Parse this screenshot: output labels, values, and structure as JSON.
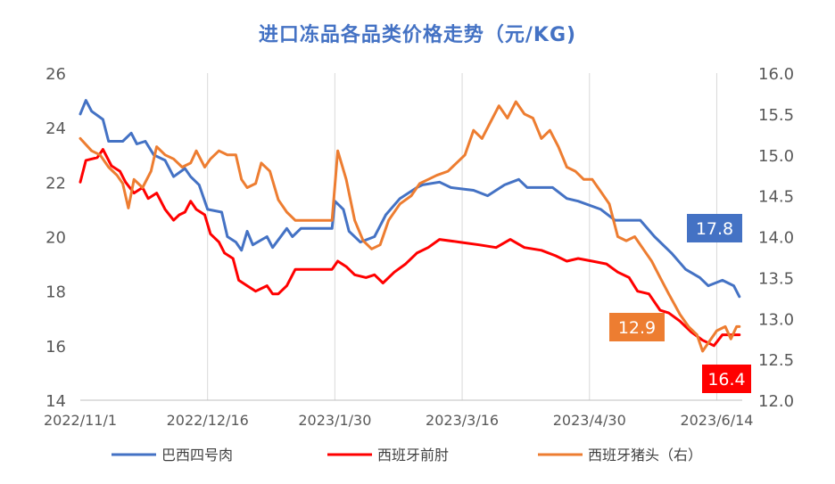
{
  "chart_data": {
    "type": "line",
    "title": "进口冻品各品类价格走势（元/KG)",
    "x_tick_labels": [
      "2022/11/1",
      "2022/12/16",
      "2023/1/30",
      "2023/3/16",
      "2023/4/30",
      "2023/6/14"
    ],
    "x_ticks": [
      "2022-11-01",
      "2022-12-16",
      "2023-01-30",
      "2023-03-16",
      "2023-04-30",
      "2023-06-14"
    ],
    "x_range": [
      "2022-11-01",
      "2023-06-23"
    ],
    "y_left": {
      "min": 14,
      "max": 26,
      "ticks": [
        "14",
        "16",
        "18",
        "20",
        "22",
        "24",
        "26"
      ]
    },
    "y_right": {
      "min": 12.0,
      "max": 16.0,
      "ticks": [
        "12.0",
        "12.5",
        "13.0",
        "13.5",
        "14.0",
        "14.5",
        "15.0",
        "15.5",
        "16.0"
      ]
    },
    "grid": "vertical",
    "legend_position": "bottom",
    "colors": {
      "brazil": "#4472c4",
      "spain_shoulder": "#ff0000",
      "spain_head": "#ed7d31"
    },
    "series": [
      {
        "name": "巴西四号肉",
        "axis": "left",
        "color": "#4472c4",
        "points": [
          [
            "2022-11-01",
            24.5
          ],
          [
            "2022-11-03",
            25.0
          ],
          [
            "2022-11-05",
            24.6
          ],
          [
            "2022-11-09",
            24.3
          ],
          [
            "2022-11-11",
            23.5
          ],
          [
            "2022-11-16",
            23.5
          ],
          [
            "2022-11-19",
            23.8
          ],
          [
            "2022-11-21",
            23.4
          ],
          [
            "2022-11-24",
            23.5
          ],
          [
            "2022-11-27",
            23.0
          ],
          [
            "2022-12-01",
            22.8
          ],
          [
            "2022-12-04",
            22.2
          ],
          [
            "2022-12-08",
            22.5
          ],
          [
            "2022-12-10",
            22.2
          ],
          [
            "2022-12-13",
            21.9
          ],
          [
            "2022-12-16",
            21.0
          ],
          [
            "2022-12-21",
            20.9
          ],
          [
            "2022-12-23",
            20.0
          ],
          [
            "2022-12-26",
            19.8
          ],
          [
            "2022-12-28",
            19.5
          ],
          [
            "2022-12-30",
            20.2
          ],
          [
            "2023-01-01",
            19.7
          ],
          [
            "2023-01-06",
            20.0
          ],
          [
            "2023-01-08",
            19.6
          ],
          [
            "2023-01-13",
            20.3
          ],
          [
            "2023-01-15",
            20.0
          ],
          [
            "2023-01-18",
            20.3
          ],
          [
            "2023-01-29",
            20.3
          ],
          [
            "2023-01-30",
            21.3
          ],
          [
            "2023-02-02",
            21.0
          ],
          [
            "2023-02-04",
            20.2
          ],
          [
            "2023-02-08",
            19.8
          ],
          [
            "2023-02-13",
            20.0
          ],
          [
            "2023-02-17",
            20.8
          ],
          [
            "2023-02-22",
            21.4
          ],
          [
            "2023-02-28",
            21.8
          ],
          [
            "2023-03-02",
            21.9
          ],
          [
            "2023-03-08",
            22.0
          ],
          [
            "2023-03-12",
            21.8
          ],
          [
            "2023-03-20",
            21.7
          ],
          [
            "2023-03-25",
            21.5
          ],
          [
            "2023-03-31",
            21.9
          ],
          [
            "2023-04-05",
            22.1
          ],
          [
            "2023-04-08",
            21.8
          ],
          [
            "2023-04-17",
            21.8
          ],
          [
            "2023-04-22",
            21.4
          ],
          [
            "2023-04-26",
            21.3
          ],
          [
            "2023-05-04",
            21.0
          ],
          [
            "2023-05-09",
            20.6
          ],
          [
            "2023-05-18",
            20.6
          ],
          [
            "2023-05-23",
            20.0
          ],
          [
            "2023-05-29",
            19.4
          ],
          [
            "2023-06-03",
            18.8
          ],
          [
            "2023-06-08",
            18.5
          ],
          [
            "2023-06-11",
            18.2
          ],
          [
            "2023-06-16",
            18.4
          ],
          [
            "2023-06-20",
            18.2
          ],
          [
            "2023-06-22",
            17.8
          ]
        ]
      },
      {
        "name": "西班牙前肘",
        "axis": "left",
        "color": "#ff0000",
        "points": [
          [
            "2022-11-01",
            22.0
          ],
          [
            "2022-11-03",
            22.8
          ],
          [
            "2022-11-07",
            22.9
          ],
          [
            "2022-11-09",
            23.2
          ],
          [
            "2022-11-12",
            22.6
          ],
          [
            "2022-11-15",
            22.4
          ],
          [
            "2022-11-17",
            22.0
          ],
          [
            "2022-11-20",
            21.6
          ],
          [
            "2022-11-23",
            21.8
          ],
          [
            "2022-11-25",
            21.4
          ],
          [
            "2022-11-28",
            21.6
          ],
          [
            "2022-12-01",
            21.0
          ],
          [
            "2022-12-04",
            20.6
          ],
          [
            "2022-12-06",
            20.8
          ],
          [
            "2022-12-08",
            20.9
          ],
          [
            "2022-12-10",
            21.3
          ],
          [
            "2022-12-12",
            21.0
          ],
          [
            "2022-12-15",
            20.8
          ],
          [
            "2022-12-17",
            20.1
          ],
          [
            "2022-12-20",
            19.8
          ],
          [
            "2022-12-22",
            19.4
          ],
          [
            "2022-12-25",
            19.2
          ],
          [
            "2022-12-27",
            18.4
          ],
          [
            "2022-12-30",
            18.2
          ],
          [
            "2023-01-02",
            18.0
          ],
          [
            "2023-01-06",
            18.2
          ],
          [
            "2023-01-08",
            17.9
          ],
          [
            "2023-01-10",
            17.9
          ],
          [
            "2023-01-13",
            18.2
          ],
          [
            "2023-01-16",
            18.8
          ],
          [
            "2023-01-29",
            18.8
          ],
          [
            "2023-01-31",
            19.1
          ],
          [
            "2023-02-03",
            18.9
          ],
          [
            "2023-02-06",
            18.6
          ],
          [
            "2023-02-10",
            18.5
          ],
          [
            "2023-02-13",
            18.6
          ],
          [
            "2023-02-16",
            18.3
          ],
          [
            "2023-02-20",
            18.7
          ],
          [
            "2023-02-24",
            19.0
          ],
          [
            "2023-02-28",
            19.4
          ],
          [
            "2023-03-04",
            19.6
          ],
          [
            "2023-03-08",
            19.9
          ],
          [
            "2023-03-15",
            19.8
          ],
          [
            "2023-03-22",
            19.7
          ],
          [
            "2023-03-28",
            19.6
          ],
          [
            "2023-04-02",
            19.9
          ],
          [
            "2023-04-07",
            19.6
          ],
          [
            "2023-04-13",
            19.5
          ],
          [
            "2023-04-18",
            19.3
          ],
          [
            "2023-04-22",
            19.1
          ],
          [
            "2023-04-26",
            19.2
          ],
          [
            "2023-05-01",
            19.1
          ],
          [
            "2023-05-06",
            19.0
          ],
          [
            "2023-05-10",
            18.7
          ],
          [
            "2023-05-14",
            18.5
          ],
          [
            "2023-05-17",
            18.0
          ],
          [
            "2023-05-21",
            17.9
          ],
          [
            "2023-05-25",
            17.3
          ],
          [
            "2023-05-28",
            17.2
          ],
          [
            "2023-06-01",
            16.9
          ],
          [
            "2023-06-05",
            16.5
          ],
          [
            "2023-06-09",
            16.2
          ],
          [
            "2023-06-13",
            16.0
          ],
          [
            "2023-06-16",
            16.4
          ],
          [
            "2023-06-19",
            16.4
          ],
          [
            "2023-06-22",
            16.4
          ]
        ]
      },
      {
        "name": "西班牙猪头（右）",
        "axis": "right",
        "color": "#ed7d31",
        "points": [
          [
            "2022-11-01",
            15.2
          ],
          [
            "2022-11-05",
            15.05
          ],
          [
            "2022-11-08",
            15.0
          ],
          [
            "2022-11-11",
            14.85
          ],
          [
            "2022-11-14",
            14.75
          ],
          [
            "2022-11-16",
            14.65
          ],
          [
            "2022-11-18",
            14.35
          ],
          [
            "2022-11-20",
            14.7
          ],
          [
            "2022-11-23",
            14.6
          ],
          [
            "2022-11-26",
            14.8
          ],
          [
            "2022-11-28",
            15.1
          ],
          [
            "2022-12-01",
            15.0
          ],
          [
            "2022-12-04",
            14.95
          ],
          [
            "2022-12-07",
            14.85
          ],
          [
            "2022-12-10",
            14.9
          ],
          [
            "2022-12-12",
            15.05
          ],
          [
            "2022-12-15",
            14.85
          ],
          [
            "2022-12-17",
            14.95
          ],
          [
            "2022-12-20",
            15.05
          ],
          [
            "2022-12-23",
            15.0
          ],
          [
            "2022-12-26",
            15.0
          ],
          [
            "2022-12-28",
            14.7
          ],
          [
            "2022-12-30",
            14.6
          ],
          [
            "2023-01-02",
            14.65
          ],
          [
            "2023-01-04",
            14.9
          ],
          [
            "2023-01-07",
            14.8
          ],
          [
            "2023-01-10",
            14.45
          ],
          [
            "2023-01-13",
            14.3
          ],
          [
            "2023-01-16",
            14.2
          ],
          [
            "2023-01-19",
            14.2
          ],
          [
            "2023-01-29",
            14.2
          ],
          [
            "2023-01-31",
            15.05
          ],
          [
            "2023-02-03",
            14.7
          ],
          [
            "2023-02-06",
            14.2
          ],
          [
            "2023-02-09",
            13.95
          ],
          [
            "2023-02-12",
            13.85
          ],
          [
            "2023-02-15",
            13.9
          ],
          [
            "2023-02-18",
            14.2
          ],
          [
            "2023-02-22",
            14.4
          ],
          [
            "2023-02-26",
            14.5
          ],
          [
            "2023-03-01",
            14.65
          ],
          [
            "2023-03-04",
            14.7
          ],
          [
            "2023-03-07",
            14.75
          ],
          [
            "2023-03-11",
            14.8
          ],
          [
            "2023-03-14",
            14.9
          ],
          [
            "2023-03-17",
            15.0
          ],
          [
            "2023-03-20",
            15.3
          ],
          [
            "2023-03-23",
            15.2
          ],
          [
            "2023-03-26",
            15.4
          ],
          [
            "2023-03-29",
            15.6
          ],
          [
            "2023-04-01",
            15.45
          ],
          [
            "2023-04-04",
            15.65
          ],
          [
            "2023-04-07",
            15.5
          ],
          [
            "2023-04-10",
            15.45
          ],
          [
            "2023-04-13",
            15.2
          ],
          [
            "2023-04-16",
            15.3
          ],
          [
            "2023-04-19",
            15.1
          ],
          [
            "2023-04-22",
            14.85
          ],
          [
            "2023-04-25",
            14.8
          ],
          [
            "2023-04-28",
            14.7
          ],
          [
            "2023-05-01",
            14.7
          ],
          [
            "2023-05-04",
            14.55
          ],
          [
            "2023-05-07",
            14.4
          ],
          [
            "2023-05-10",
            14.0
          ],
          [
            "2023-05-13",
            13.95
          ],
          [
            "2023-05-16",
            14.0
          ],
          [
            "2023-05-19",
            13.85
          ],
          [
            "2023-05-22",
            13.7
          ],
          [
            "2023-05-25",
            13.5
          ],
          [
            "2023-05-28",
            13.3
          ],
          [
            "2023-06-01",
            13.05
          ],
          [
            "2023-06-04",
            12.9
          ],
          [
            "2023-06-07",
            12.8
          ],
          [
            "2023-06-09",
            12.6
          ],
          [
            "2023-06-11",
            12.7
          ],
          [
            "2023-06-14",
            12.85
          ],
          [
            "2023-06-17",
            12.9
          ],
          [
            "2023-06-19",
            12.75
          ],
          [
            "2023-06-21",
            12.9
          ],
          [
            "2023-06-22",
            12.9
          ]
        ]
      }
    ],
    "annotations": [
      {
        "text": "17.8",
        "series": "巴西四号肉",
        "color": "#4472c4"
      },
      {
        "text": "12.9",
        "series": "西班牙猪头（右）",
        "color": "#ed7d31"
      },
      {
        "text": "16.4",
        "series": "西班牙前肘",
        "color": "#ff0000"
      }
    ]
  }
}
